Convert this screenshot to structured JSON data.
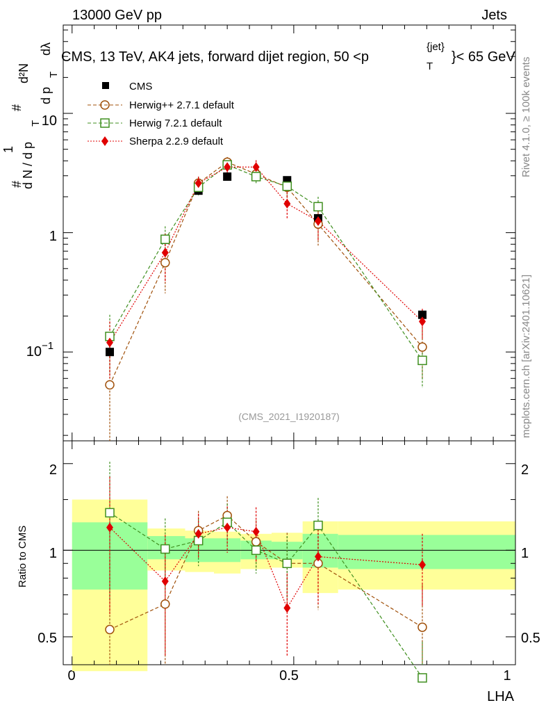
{
  "header": {
    "left": "13000 GeV pp",
    "right": "Jets",
    "title_main": "CMS, 13 TeV, AK4 jets, forward dijet region, 50 <p",
    "title_sub": "T",
    "title_sup": "{jet}",
    "title_end": "}< 65 GeV",
    "watermark": "(CMS_2021_I1920187)",
    "side_rivet": "Rivet 4.1.0, ≥ 100k events",
    "side_mcplots": "mcplots.cern.ch [arXiv:2401.10621]"
  },
  "axes": {
    "xlabel": "LHA",
    "upper_ylabel_parts": [
      "#",
      "1",
      "d N / d p",
      "T",
      "#",
      "d²N",
      "d p",
      "T",
      "dλ"
    ],
    "lower_ylabel": "Ratio to CMS",
    "x_ticks": [
      "0",
      "0.5",
      "1"
    ],
    "upper_y_ticks": [
      "10",
      "1",
      "10"
    ],
    "upper_y_tick_exp": "−1",
    "lower_y_ticks": [
      "2",
      "1",
      "0.5"
    ],
    "lower_y_ticks_right": [
      "2",
      "1",
      "0.5"
    ]
  },
  "legend": [
    {
      "label": "CMS",
      "color": "#000000"
    },
    {
      "label": "Herwig++ 2.7.1 default",
      "color": "#a0500a"
    },
    {
      "label": "Herwig 7.2.1 default",
      "color": "#3f8f1f"
    },
    {
      "label": "Sherpa 2.2.9 default",
      "color": "#e00000"
    }
  ],
  "chart_data": {
    "type": "scatter",
    "x": [
      0.085,
      0.21,
      0.285,
      0.35,
      0.415,
      0.485,
      0.555,
      0.79
    ],
    "xlim": [
      -0.02,
      1.0
    ],
    "ylim_upper": [
      0.018,
      55
    ],
    "ylim_lower": [
      0.4,
      2.4
    ],
    "series": [
      {
        "name": "CMS",
        "values": [
          0.1,
          0.87,
          2.25,
          2.95,
          2.95,
          2.75,
          1.32,
          0.205
        ],
        "errors": [
          0.01,
          0.05,
          0.1,
          0.1,
          0.1,
          0.1,
          0.1,
          0.02
        ]
      },
      {
        "name": "Herwig++ 2.7.1 default",
        "values": [
          0.053,
          0.56,
          2.6,
          3.9,
          3.1,
          2.4,
          1.18,
          0.11
        ],
        "errors": [
          0.04,
          0.25,
          0.35,
          0.4,
          0.4,
          0.45,
          0.4,
          0.05
        ]
      },
      {
        "name": "Herwig 7.2.1 default",
        "values": [
          0.135,
          0.88,
          2.4,
          3.7,
          2.95,
          2.45,
          1.65,
          0.085
        ],
        "errors": [
          0.07,
          0.25,
          0.4,
          0.4,
          0.35,
          0.45,
          0.35,
          0.035
        ]
      },
      {
        "name": "Sherpa 2.2.9 default",
        "values": [
          0.12,
          0.68,
          2.6,
          3.55,
          3.55,
          1.75,
          1.25,
          0.18
        ],
        "errors": [
          0.06,
          0.3,
          0.35,
          0.45,
          0.5,
          0.45,
          0.4,
          0.05
        ]
      }
    ],
    "ratio_series": [
      {
        "name": "Herwig++ 2.7.1 default",
        "values": [
          0.53,
          0.65,
          1.17,
          1.32,
          1.07,
          0.9,
          0.9,
          0.54
        ],
        "errors": [
          0.4,
          0.35,
          0.2,
          0.22,
          0.2,
          0.25,
          0.28,
          0.22
        ]
      },
      {
        "name": "Herwig 7.2.1 default",
        "values": [
          1.35,
          1.01,
          1.08,
          1.25,
          1.0,
          0.9,
          1.22,
          0.36
        ],
        "errors": [
          0.68,
          0.28,
          0.2,
          0.2,
          0.17,
          0.22,
          0.3,
          0.12
        ]
      },
      {
        "name": "Sherpa 2.2.9 default",
        "values": [
          1.2,
          0.78,
          1.14,
          1.2,
          1.16,
          0.63,
          0.95,
          0.89
        ],
        "errors": [
          0.6,
          0.35,
          0.2,
          0.22,
          0.25,
          0.2,
          0.3,
          0.25
        ]
      }
    ],
    "bands": [
      {
        "x0": 0.0,
        "x1": 0.17,
        "inner": [
          0.73,
          1.25
        ],
        "outer": [
          0.38,
          1.5
        ]
      },
      {
        "x0": 0.17,
        "x1": 0.255,
        "inner": [
          0.93,
          1.12
        ],
        "outer": [
          0.85,
          1.19
        ]
      },
      {
        "x0": 0.255,
        "x1": 0.32,
        "inner": [
          0.91,
          1.1
        ],
        "outer": [
          0.84,
          1.17
        ]
      },
      {
        "x0": 0.32,
        "x1": 0.38,
        "inner": [
          0.91,
          1.1
        ],
        "outer": [
          0.83,
          1.16
        ]
      },
      {
        "x0": 0.38,
        "x1": 0.45,
        "inner": [
          0.93,
          1.08
        ],
        "outer": [
          0.86,
          1.14
        ]
      },
      {
        "x0": 0.45,
        "x1": 0.52,
        "inner": [
          0.93,
          1.07
        ],
        "outer": [
          0.87,
          1.15
        ]
      },
      {
        "x0": 0.52,
        "x1": 0.6,
        "inner": [
          0.87,
          1.14
        ],
        "outer": [
          0.71,
          1.26
        ]
      },
      {
        "x0": 0.6,
        "x1": 1.0,
        "inner": [
          0.86,
          1.13
        ],
        "outer": [
          0.73,
          1.26
        ]
      }
    ]
  }
}
